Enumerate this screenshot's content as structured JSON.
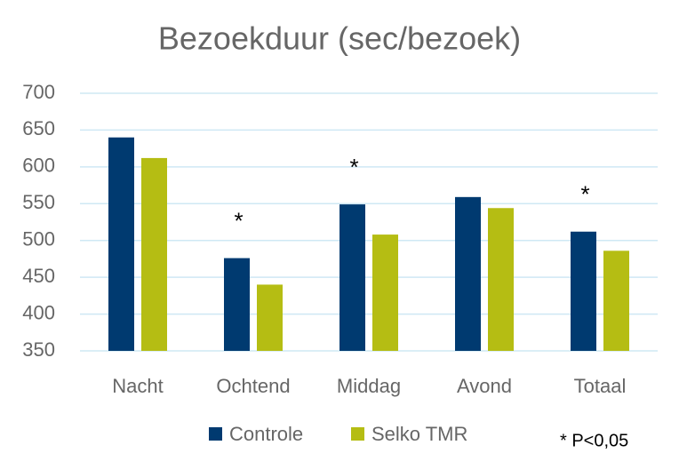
{
  "chart_data": {
    "type": "bar",
    "title": "Bezoekduur (sec/bezoek)",
    "categories": [
      "Nacht",
      "Ochtend",
      "Middag",
      "Avond",
      "Totaal"
    ],
    "series": [
      {
        "name": "Controle",
        "color": "#003a70",
        "values": [
          640,
          476,
          549,
          559,
          512
        ]
      },
      {
        "name": "Selko TMR",
        "color": "#b5bd13",
        "values": [
          612,
          440,
          508,
          544,
          486
        ]
      }
    ],
    "markers": [
      null,
      "*",
      "*",
      null,
      "*"
    ],
    "footnote": "* P<0,05",
    "ylim": [
      350,
      700
    ],
    "yticks": [
      350,
      400,
      450,
      500,
      550,
      600,
      650,
      700
    ],
    "grid": true
  }
}
